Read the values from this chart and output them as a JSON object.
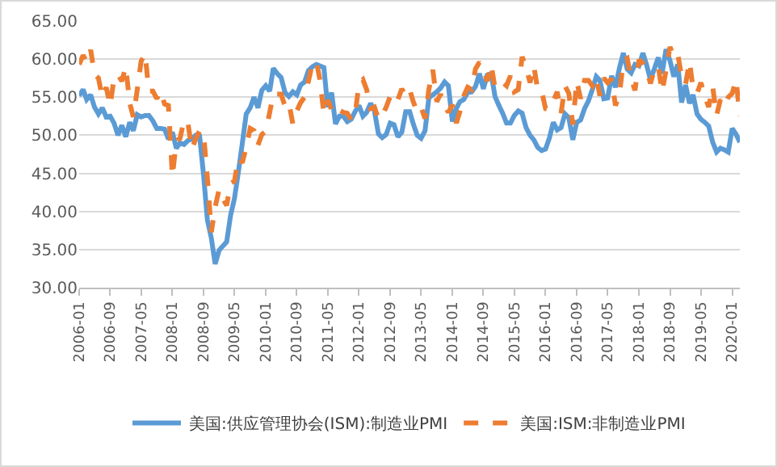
{
  "chart_data": {
    "type": "line",
    "x": [
      "2006-01",
      "2006-02",
      "2006-03",
      "2006-04",
      "2006-05",
      "2006-06",
      "2006-07",
      "2006-08",
      "2006-09",
      "2006-10",
      "2006-11",
      "2006-12",
      "2007-01",
      "2007-02",
      "2007-03",
      "2007-04",
      "2007-05",
      "2007-06",
      "2007-07",
      "2007-08",
      "2007-09",
      "2007-10",
      "2007-11",
      "2007-12",
      "2008-01",
      "2008-02",
      "2008-03",
      "2008-04",
      "2008-05",
      "2008-06",
      "2008-07",
      "2008-08",
      "2008-09",
      "2008-10",
      "2008-11",
      "2008-12",
      "2009-01",
      "2009-02",
      "2009-03",
      "2009-04",
      "2009-05",
      "2009-06",
      "2009-07",
      "2009-08",
      "2009-09",
      "2009-10",
      "2009-11",
      "2009-12",
      "2010-01",
      "2010-02",
      "2010-03",
      "2010-04",
      "2010-05",
      "2010-06",
      "2010-07",
      "2010-08",
      "2010-09",
      "2010-10",
      "2010-11",
      "2010-12",
      "2011-01",
      "2011-02",
      "2011-03",
      "2011-04",
      "2011-05",
      "2011-06",
      "2011-07",
      "2011-08",
      "2011-09",
      "2011-10",
      "2011-11",
      "2011-12",
      "2012-01",
      "2012-02",
      "2012-03",
      "2012-04",
      "2012-05",
      "2012-06",
      "2012-07",
      "2012-08",
      "2012-09",
      "2012-10",
      "2012-11",
      "2012-12",
      "2013-01",
      "2013-02",
      "2013-03",
      "2013-04",
      "2013-05",
      "2013-06",
      "2013-07",
      "2013-08",
      "2013-09",
      "2013-10",
      "2013-11",
      "2013-12",
      "2014-01",
      "2014-02",
      "2014-03",
      "2014-04",
      "2014-05",
      "2014-06",
      "2014-07",
      "2014-08",
      "2014-09",
      "2014-10",
      "2014-11",
      "2014-12",
      "2015-01",
      "2015-02",
      "2015-03",
      "2015-04",
      "2015-05",
      "2015-06",
      "2015-07",
      "2015-08",
      "2015-09",
      "2015-10",
      "2015-11",
      "2015-12",
      "2016-01",
      "2016-02",
      "2016-03",
      "2016-04",
      "2016-05",
      "2016-06",
      "2016-07",
      "2016-08",
      "2016-09",
      "2016-10",
      "2016-11",
      "2016-12",
      "2017-01",
      "2017-02",
      "2017-03",
      "2017-04",
      "2017-05",
      "2017-06",
      "2017-07",
      "2017-08",
      "2017-09",
      "2017-10",
      "2017-11",
      "2017-12",
      "2018-01",
      "2018-02",
      "2018-03",
      "2018-04",
      "2018-05",
      "2018-06",
      "2018-07",
      "2018-08",
      "2018-09",
      "2018-10",
      "2018-11",
      "2018-12",
      "2019-01",
      "2019-02",
      "2019-03",
      "2019-04",
      "2019-05",
      "2019-06",
      "2019-07",
      "2019-08",
      "2019-09",
      "2019-10",
      "2019-11",
      "2019-12",
      "2020-01",
      "2020-02",
      "2020-03"
    ],
    "series": [
      {
        "name": "美国:供应管理协会(ISM):制造业PMI",
        "color": "#5b9bd5",
        "line_style": "solid",
        "values": [
          55.2,
          56.0,
          54.7,
          55.3,
          53.7,
          52.8,
          53.6,
          52.4,
          52.5,
          51.6,
          50.0,
          51.3,
          49.8,
          51.7,
          50.6,
          52.7,
          52.4,
          52.6,
          52.6,
          51.9,
          50.9,
          50.9,
          50.8,
          49.5,
          50.4,
          48.3,
          49.0,
          48.8,
          49.3,
          49.5,
          50.0,
          49.9,
          44.8,
          38.9,
          36.5,
          33.1,
          34.9,
          35.5,
          36.0,
          39.5,
          41.7,
          45.2,
          48.9,
          52.8,
          53.6,
          55.0,
          53.6,
          55.9,
          56.5,
          55.8,
          58.8,
          58.1,
          57.6,
          55.6,
          55.1,
          55.7,
          55.3,
          56.6,
          57.0,
          58.5,
          59.0,
          59.3,
          59.1,
          58.9,
          53.7,
          55.6,
          51.5,
          52.5,
          52.5,
          51.8,
          52.1,
          53.1,
          53.9,
          52.5,
          53.0,
          54.2,
          53.2,
          50.2,
          49.7,
          50.1,
          51.6,
          51.4,
          49.8,
          50.4,
          53.1,
          53.1,
          51.5,
          50.0,
          49.6,
          50.6,
          54.9,
          55.3,
          55.7,
          56.2,
          57.0,
          56.5,
          51.8,
          53.5,
          54.4,
          54.7,
          55.6,
          55.7,
          56.4,
          58.1,
          56.1,
          57.9,
          58.1,
          55.1,
          53.9,
          52.8,
          51.6,
          51.6,
          52.6,
          53.2,
          52.9,
          51.0,
          50.0,
          49.4,
          48.4,
          48.0,
          48.2,
          49.7,
          51.7,
          50.7,
          51.0,
          52.8,
          52.3,
          49.4,
          51.7,
          52.0,
          53.5,
          54.5,
          56.0,
          57.7,
          57.2,
          54.8,
          54.9,
          57.8,
          56.3,
          58.8,
          60.8,
          58.7,
          58.2,
          59.3,
          59.1,
          60.8,
          59.3,
          57.3,
          58.7,
          60.2,
          58.1,
          61.3,
          59.8,
          57.7,
          59.3,
          54.3,
          56.6,
          54.2,
          55.3,
          52.8,
          52.1,
          51.7,
          51.2,
          49.1,
          47.8,
          48.3,
          48.1,
          47.8,
          50.9,
          50.1,
          49.1
        ]
      },
      {
        "name": "美国:ISM:非制造业PMI",
        "color": "#ed7d31",
        "line_style": "dashed",
        "values": [
          59.3,
          60.5,
          59.6,
          61.2,
          58.0,
          57.5,
          55.0,
          56.3,
          53.9,
          57.5,
          58.0,
          57.1,
          59.0,
          54.2,
          52.4,
          56.0,
          59.7,
          60.7,
          55.8,
          55.8,
          54.8,
          55.8,
          54.1,
          53.9,
          44.6,
          49.3,
          49.6,
          52.0,
          51.7,
          48.2,
          49.5,
          50.6,
          50.2,
          44.4,
          37.3,
          40.6,
          42.9,
          41.6,
          40.8,
          43.7,
          44.0,
          47.0,
          46.4,
          48.4,
          50.9,
          50.6,
          48.7,
          50.1,
          50.5,
          53.0,
          55.4,
          55.4,
          55.4,
          53.8,
          54.3,
          51.5,
          53.2,
          54.3,
          55.0,
          57.1,
          59.4,
          59.7,
          57.3,
          52.8,
          54.6,
          53.3,
          52.7,
          53.3,
          53.0,
          52.9,
          52.0,
          52.6,
          56.8,
          57.3,
          56.0,
          53.5,
          53.7,
          52.1,
          52.6,
          53.7,
          55.1,
          54.2,
          54.7,
          56.1,
          55.2,
          56.0,
          54.4,
          53.1,
          53.7,
          52.2,
          56.0,
          58.6,
          54.4,
          55.4,
          53.9,
          53.0,
          54.0,
          51.6,
          53.1,
          55.2,
          56.3,
          56.0,
          58.7,
          59.6,
          58.6,
          57.1,
          59.3,
          56.2,
          56.7,
          56.9,
          56.5,
          57.8,
          55.7,
          56.0,
          60.3,
          59.0,
          56.9,
          59.1,
          55.9,
          55.8,
          53.5,
          53.4,
          54.5,
          55.7,
          52.9,
          56.5,
          55.5,
          51.4,
          57.1,
          54.8,
          57.2,
          57.2,
          56.5,
          57.6,
          55.2,
          57.5,
          56.9,
          57.4,
          53.9,
          55.3,
          59.8,
          60.1,
          57.4,
          55.9,
          59.9,
          59.5,
          58.8,
          56.8,
          58.6,
          59.1,
          55.7,
          58.5,
          61.6,
          60.3,
          60.7,
          57.6,
          56.7,
          59.7,
          56.1,
          55.5,
          56.9,
          55.1,
          53.7,
          56.4,
          52.6,
          54.7,
          53.9,
          55.0,
          55.5,
          57.3,
          52.5
        ]
      }
    ],
    "xlim": [
      "2006-01",
      "2020-03"
    ],
    "xticks": [
      "2006-01",
      "2006-09",
      "2007-05",
      "2008-01",
      "2008-09",
      "2009-05",
      "2010-01",
      "2010-09",
      "2011-05",
      "2012-01",
      "2012-09",
      "2013-05",
      "2014-01",
      "2014-09",
      "2015-05",
      "2016-01",
      "2016-09",
      "2017-05",
      "2018-01",
      "2018-09",
      "2019-05",
      "2020-01"
    ],
    "ylim": [
      30,
      65
    ],
    "yticks": [
      {
        "value": 30,
        "label": "30.00"
      },
      {
        "value": 35,
        "label": "35.00"
      },
      {
        "value": 40,
        "label": "40.00"
      },
      {
        "value": 45,
        "label": "45.00"
      },
      {
        "value": 50,
        "label": "50.00"
      },
      {
        "value": 55,
        "label": "55.00"
      },
      {
        "value": 60,
        "label": "60.00"
      },
      {
        "value": 65,
        "label": "65.00"
      }
    ],
    "grid": "y",
    "legend": "bottom",
    "marker": "none"
  }
}
